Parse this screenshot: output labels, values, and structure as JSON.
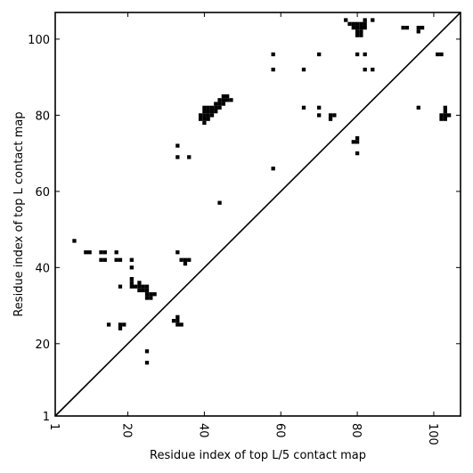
{
  "chart_data": {
    "type": "scatter",
    "marker": "square",
    "xlabel": "Residue index of top L/5 contact map",
    "ylabel": "Residue index of top L contact map",
    "xlim": [
      1,
      107
    ],
    "ylim": [
      1,
      107
    ],
    "x_ticks": [
      1,
      20,
      40,
      60,
      80,
      100
    ],
    "x_tick_labels": [
      "1",
      "20",
      "40",
      "60",
      "80",
      "100"
    ],
    "y_ticks": [
      1,
      20,
      40,
      60,
      80,
      100
    ],
    "y_tick_labels": [
      "1",
      "20",
      "40",
      "60",
      "80",
      "100"
    ],
    "diagonal_line": [
      [
        1,
        1
      ],
      [
        107,
        107
      ]
    ],
    "grid": false,
    "legend": "none",
    "colors": {
      "marker": "#000000",
      "line": "#000000"
    },
    "series": [
      {
        "points": [
          [
            6,
            47
          ],
          [
            9,
            44
          ],
          [
            10,
            44
          ],
          [
            13,
            44
          ],
          [
            14,
            44
          ],
          [
            13,
            42
          ],
          [
            14,
            42
          ],
          [
            17,
            44
          ],
          [
            17,
            42
          ],
          [
            18,
            42
          ],
          [
            18,
            35
          ],
          [
            21,
            42
          ],
          [
            21,
            40
          ],
          [
            21,
            37
          ],
          [
            21,
            36
          ],
          [
            21,
            35
          ],
          [
            22,
            35
          ],
          [
            23,
            36
          ],
          [
            23,
            35
          ],
          [
            23,
            34
          ],
          [
            24,
            35
          ],
          [
            24,
            34
          ],
          [
            25,
            35
          ],
          [
            25,
            34
          ],
          [
            25,
            33
          ],
          [
            25,
            32
          ],
          [
            26,
            33
          ],
          [
            26,
            32
          ],
          [
            27,
            33
          ],
          [
            15,
            25
          ],
          [
            18,
            25
          ],
          [
            19,
            25
          ],
          [
            18,
            24
          ],
          [
            25,
            18
          ],
          [
            25,
            15
          ],
          [
            32,
            26
          ],
          [
            33,
            27
          ],
          [
            33,
            26
          ],
          [
            33,
            25
          ],
          [
            34,
            25
          ],
          [
            33,
            44
          ],
          [
            34,
            42
          ],
          [
            35,
            42
          ],
          [
            35,
            41
          ],
          [
            36,
            42
          ],
          [
            33,
            72
          ],
          [
            33,
            69
          ],
          [
            36,
            69
          ],
          [
            44,
            57
          ],
          [
            39,
            80
          ],
          [
            39,
            79
          ],
          [
            40,
            82
          ],
          [
            40,
            81
          ],
          [
            40,
            80
          ],
          [
            40,
            79
          ],
          [
            40,
            78
          ],
          [
            41,
            82
          ],
          [
            41,
            81
          ],
          [
            41,
            80
          ],
          [
            41,
            79
          ],
          [
            42,
            82
          ],
          [
            42,
            81
          ],
          [
            42,
            80
          ],
          [
            43,
            83
          ],
          [
            43,
            82
          ],
          [
            43,
            81
          ],
          [
            44,
            84
          ],
          [
            44,
            83
          ],
          [
            44,
            82
          ],
          [
            45,
            85
          ],
          [
            45,
            84
          ],
          [
            45,
            83
          ],
          [
            46,
            85
          ],
          [
            46,
            84
          ],
          [
            47,
            84
          ],
          [
            58,
            96
          ],
          [
            58,
            92
          ],
          [
            58,
            66
          ],
          [
            66,
            92
          ],
          [
            66,
            82
          ],
          [
            70,
            96
          ],
          [
            70,
            82
          ],
          [
            70,
            80
          ],
          [
            73,
            80
          ],
          [
            73,
            79
          ],
          [
            74,
            80
          ],
          [
            77,
            105
          ],
          [
            78,
            104
          ],
          [
            79,
            104
          ],
          [
            79,
            103
          ],
          [
            79,
            73
          ],
          [
            80,
            104
          ],
          [
            80,
            103
          ],
          [
            80,
            102
          ],
          [
            80,
            101
          ],
          [
            80,
            96
          ],
          [
            80,
            74
          ],
          [
            80,
            73
          ],
          [
            80,
            70
          ],
          [
            81,
            104
          ],
          [
            81,
            103
          ],
          [
            81,
            102
          ],
          [
            81,
            101
          ],
          [
            82,
            105
          ],
          [
            82,
            104
          ],
          [
            82,
            103
          ],
          [
            82,
            96
          ],
          [
            82,
            92
          ],
          [
            84,
            105
          ],
          [
            84,
            92
          ],
          [
            92,
            103
          ],
          [
            93,
            103
          ],
          [
            96,
            103
          ],
          [
            96,
            102
          ],
          [
            96,
            82
          ],
          [
            97,
            103
          ],
          [
            101,
            96
          ],
          [
            102,
            96
          ],
          [
            102,
            80
          ],
          [
            102,
            79
          ],
          [
            103,
            82
          ],
          [
            103,
            81
          ],
          [
            103,
            80
          ],
          [
            103,
            79
          ],
          [
            104,
            80
          ]
        ]
      }
    ]
  }
}
